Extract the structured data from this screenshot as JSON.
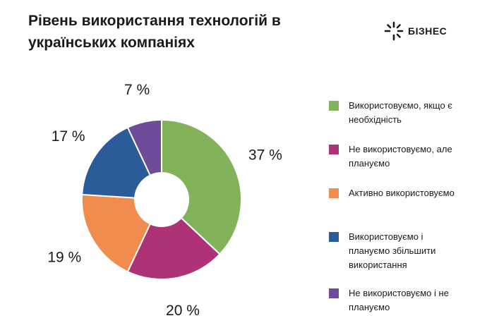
{
  "header": {
    "title": "Рівень використання технологій в українських компаніях",
    "logo_text": "БІЗНЕС"
  },
  "chart_data": {
    "type": "pie",
    "title": "Рівень використання технологій в українських компаніях",
    "value_suffix": " %",
    "series": [
      {
        "name": "Використовуємо, якщо є необхідність",
        "value": 37,
        "color": "#82b35a"
      },
      {
        "name": "Не використовуємо, але плануємо",
        "value": 20,
        "color": "#ad3376"
      },
      {
        "name": "Активно використовуємо",
        "value": 19,
        "color": "#ef8c4e"
      },
      {
        "name": "Використовуємо і плануємо збільшити використання",
        "value": 17,
        "color": "#2c5b9a"
      },
      {
        "name": "Не використовуємо і не плануємо",
        "value": 7,
        "color": "#6d4d99"
      }
    ],
    "legend_position": "right"
  }
}
